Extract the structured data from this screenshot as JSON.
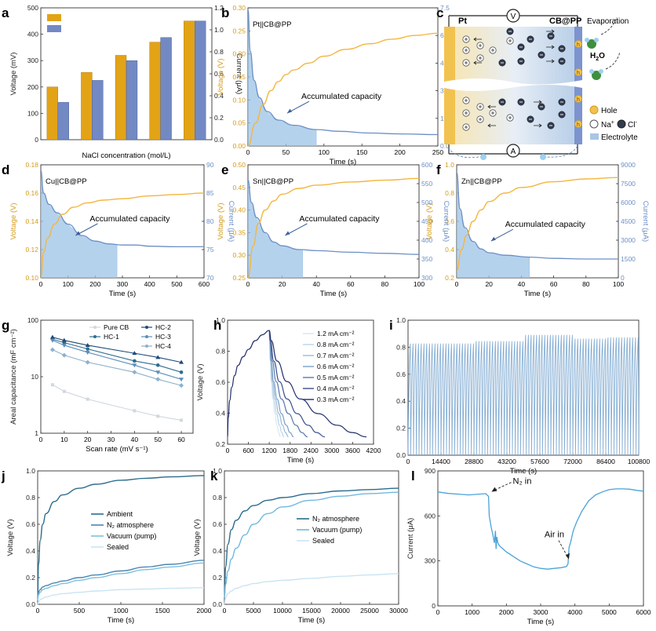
{
  "colors": {
    "voltage": "#f4b63f",
    "current": "#6c8fc6",
    "bar_voltage": "#e3a317",
    "bar_current": "#7289c3",
    "fill": "#9cc3e6",
    "dark_navy": "#1f2f5f",
    "pale": "#c9e2f3"
  },
  "panels": {
    "a": "a",
    "b": "b",
    "c": "c",
    "d": "d",
    "e": "e",
    "f": "f",
    "g": "g",
    "h": "h",
    "i": "i",
    "j": "j",
    "k": "k",
    "l": "l"
  },
  "schematic": {
    "pt_label": "Pt",
    "cb_label": "CB@PP",
    "voltmeter": "V",
    "ammeter": "A",
    "evaporation": "Evaporation",
    "water": "H",
    "water_sub": "2",
    "water_end": "O",
    "hole": "Hole",
    "na": "Na",
    "cl": "Cl",
    "electrolyte": "Electrolyte",
    "h_symbol": "h"
  },
  "chart_data": [
    {
      "id": "a",
      "type": "bar",
      "categories": [
        "0",
        "0.2",
        "0.5",
        "1",
        "2"
      ],
      "xlabel": "NaCl concentration (mol/L)",
      "ylabel": "Voltage (mV)",
      "ylabel2": "Current (μA)",
      "ylim": [
        0,
        500
      ],
      "ylim2": [
        0,
        1.2
      ],
      "yticks": [
        "0",
        "100",
        "200",
        "300",
        "400",
        "500"
      ],
      "yticks2": [
        "0.0",
        "0.2",
        "0.4",
        "0.6",
        "0.8",
        "1.0",
        "1.2"
      ],
      "series": [
        {
          "name": "Voltage",
          "axis": "left",
          "values": [
            200,
            255,
            320,
            370,
            450
          ]
        },
        {
          "name": "Current",
          "axis": "right",
          "values": [
            0.34,
            0.54,
            0.72,
            0.93,
            1.08
          ]
        }
      ]
    },
    {
      "id": "b",
      "type": "line",
      "label": "Pt||CB@PP",
      "annotation": "Accumulated capacity",
      "xlabel": "Time (s)",
      "ylabel": "Voltage (V)",
      "ylabel2": "Current (μA)",
      "xlim": [
        0,
        250
      ],
      "ylim": [
        0,
        0.3
      ],
      "ylim2": [
        0,
        8
      ],
      "xticks": [
        "0",
        "50",
        "100",
        "150",
        "200",
        "250"
      ],
      "yticks": [
        "0.00",
        "0.05",
        "0.10",
        "0.15",
        "0.20",
        "0.25",
        "0.30"
      ],
      "yticks2": [
        "0.0",
        "1.5",
        "3.0",
        "4.5",
        "6.0",
        "7.5"
      ],
      "fill_until": 90,
      "voltage": {
        "x": [
          0,
          10,
          20,
          30,
          40,
          50,
          60,
          80,
          100,
          130,
          160,
          190,
          220,
          250
        ],
        "y": [
          0,
          0.05,
          0.09,
          0.12,
          0.14,
          0.155,
          0.165,
          0.18,
          0.195,
          0.21,
          0.222,
          0.232,
          0.24,
          0.245
        ]
      },
      "current": {
        "x": [
          0,
          3,
          8,
          15,
          25,
          40,
          60,
          90,
          120,
          160,
          200,
          250
        ],
        "y": [
          7.9,
          5.5,
          3.8,
          2.8,
          2.0,
          1.5,
          1.2,
          0.95,
          0.85,
          0.75,
          0.7,
          0.66
        ]
      }
    },
    {
      "id": "d",
      "type": "line",
      "label": "Cu||CB@PP",
      "annotation": "Accumulated capacity",
      "xlabel": "Time (s)",
      "ylabel": "Voltage (V)",
      "ylabel2": "Current (μA)",
      "xlim": [
        0,
        600
      ],
      "ylim": [
        0.1,
        0.18
      ],
      "ylim2": [
        70,
        90
      ],
      "xticks": [
        "0",
        "100",
        "200",
        "300",
        "400",
        "500",
        "600"
      ],
      "yticks": [
        "0.10",
        "0.12",
        "0.14",
        "0.16",
        "0.18"
      ],
      "yticks2": [
        "70",
        "75",
        "80",
        "85",
        "90"
      ],
      "fill_until": 280,
      "voltage": {
        "x": [
          0,
          10,
          25,
          50,
          80,
          120,
          170,
          230,
          300,
          400,
          500,
          600
        ],
        "y": [
          0.1,
          0.118,
          0.128,
          0.138,
          0.145,
          0.15,
          0.153,
          0.155,
          0.156,
          0.158,
          0.159,
          0.16
        ]
      },
      "current": {
        "x": [
          0,
          10,
          30,
          60,
          100,
          150,
          200,
          250,
          300,
          350,
          400,
          500,
          600
        ],
        "y": [
          89,
          85,
          83,
          81.5,
          79.5,
          77.5,
          76.5,
          76,
          75.8,
          75.8,
          75.6,
          75.5,
          75.5
        ]
      }
    },
    {
      "id": "e",
      "type": "line",
      "label": "Sn||CB@PP",
      "annotation": "Accumulated capacity",
      "xlabel": "Time (s)",
      "ylabel": "Voltage (V)",
      "ylabel2": "Current (μA)",
      "xlim": [
        0,
        100
      ],
      "ylim": [
        0.25,
        0.5
      ],
      "ylim2": [
        300,
        600
      ],
      "xticks": [
        "0",
        "20",
        "40",
        "60",
        "80",
        "100"
      ],
      "yticks": [
        "0.25",
        "0.30",
        "0.35",
        "0.40",
        "0.45",
        "0.50"
      ],
      "yticks2": [
        "300",
        "350",
        "400",
        "450",
        "500",
        "550",
        "600"
      ],
      "fill_until": 32,
      "voltage": {
        "x": [
          0,
          3,
          6,
          10,
          15,
          20,
          30,
          40,
          60,
          80,
          100
        ],
        "y": [
          0.25,
          0.32,
          0.37,
          0.4,
          0.42,
          0.435,
          0.448,
          0.455,
          0.462,
          0.466,
          0.47
        ]
      },
      "current": {
        "x": [
          0,
          2,
          5,
          10,
          15,
          20,
          30,
          40,
          60,
          80,
          100
        ],
        "y": [
          560,
          500,
          460,
          420,
          395,
          385,
          375,
          372,
          368,
          365,
          362
        ]
      }
    },
    {
      "id": "f",
      "type": "line",
      "label": "Zn||CB@PP",
      "annotation": "Accumulated capacity",
      "xlabel": "Time (s)",
      "ylabel": "Voltage (V)",
      "ylabel2": "Current (μA)",
      "xlim": [
        0,
        100
      ],
      "ylim": [
        0.2,
        1.0
      ],
      "ylim2": [
        0,
        9000
      ],
      "xticks": [
        "0",
        "20",
        "40",
        "60",
        "80",
        "100"
      ],
      "yticks": [
        "0.2",
        "0.4",
        "0.6",
        "0.8",
        "1.0"
      ],
      "yticks2": [
        "0",
        "1500",
        "3000",
        "4500",
        "6000",
        "7500",
        "9000"
      ],
      "fill_until": 45,
      "voltage": {
        "x": [
          0,
          3,
          6,
          10,
          15,
          20,
          30,
          40,
          60,
          80,
          100
        ],
        "y": [
          0.25,
          0.4,
          0.5,
          0.6,
          0.68,
          0.74,
          0.8,
          0.84,
          0.88,
          0.9,
          0.91
        ]
      },
      "current": {
        "x": [
          0,
          2,
          5,
          10,
          15,
          20,
          30,
          45,
          60,
          80,
          100
        ],
        "y": [
          8400,
          5500,
          4000,
          2900,
          2300,
          2000,
          1800,
          1650,
          1550,
          1500,
          1500
        ]
      }
    },
    {
      "id": "g",
      "type": "line",
      "scale": "log",
      "xlabel": "Scan rate (mV s⁻¹)",
      "ylabel": "Areal capacitance (mF cm⁻²)",
      "xlim": [
        0,
        65
      ],
      "ylim": [
        1,
        100
      ],
      "xticks": [
        "0",
        "10",
        "20",
        "30",
        "40",
        "50",
        "60"
      ],
      "yticks": [
        "1",
        "10",
        "100"
      ],
      "x": [
        5,
        10,
        20,
        40,
        50,
        60
      ],
      "series": [
        {
          "name": "Pure CB",
          "color": "#d0d8df",
          "marker": "square",
          "values": [
            7.2,
            5.5,
            4.0,
            2.5,
            2.0,
            1.7
          ]
        },
        {
          "name": "HC-1",
          "color": "#2e6d8e",
          "marker": "circle",
          "values": [
            46,
            40,
            31,
            19,
            16,
            12
          ]
        },
        {
          "name": "HC-2",
          "color": "#1f4a7a",
          "marker": "triangle",
          "values": [
            50,
            44,
            36,
            26,
            22,
            18
          ]
        },
        {
          "name": "HC-3",
          "color": "#5b8fb8",
          "marker": "triangle-down",
          "values": [
            44,
            36,
            27,
            16,
            12,
            9
          ]
        },
        {
          "name": "HC-4",
          "color": "#8db1cc",
          "marker": "diamond",
          "values": [
            30,
            24,
            18,
            12,
            9,
            7
          ]
        }
      ]
    },
    {
      "id": "h",
      "type": "line",
      "xlabel": "Time (s)",
      "ylabel": "Voltage (V)",
      "xlim": [
        0,
        4200
      ],
      "ylim": [
        0.15,
        1.0
      ],
      "xticks": [
        "0",
        "600",
        "1200",
        "1800",
        "2400",
        "3000",
        "3600",
        "4200"
      ],
      "yticks": [
        "0.2",
        "0.4",
        "0.6",
        "0.8",
        "1.0"
      ],
      "charge": {
        "x": [
          0,
          20,
          60,
          120,
          200,
          300,
          450,
          600,
          800,
          1000,
          1200
        ],
        "y": [
          0.2,
          0.33,
          0.45,
          0.54,
          0.62,
          0.69,
          0.75,
          0.8,
          0.86,
          0.9,
          0.93
        ]
      },
      "series": [
        {
          "name": "1.2 mA cm⁻²",
          "color": "#d9e7f2",
          "end": 1520
        },
        {
          "name": "0.8 mA cm⁻²",
          "color": "#b8d2e6",
          "end": 1620
        },
        {
          "name": "0.7 mA cm⁻²",
          "color": "#97bbd8",
          "end": 1750
        },
        {
          "name": "0.6 mA cm⁻²",
          "color": "#7b9fc6",
          "end": 1900
        },
        {
          "name": "0.5 mA cm⁻²",
          "color": "#5a79ad",
          "end": 2300
        },
        {
          "name": "0.4 mA cm⁻²",
          "color": "#3c4f8c",
          "end": 2800
        },
        {
          "name": "0.3 mA cm⁻²",
          "color": "#222e6a",
          "end": 4000
        }
      ]
    },
    {
      "id": "i",
      "type": "line",
      "xlabel": "Time (s)",
      "ylabel": "",
      "xlim": [
        0,
        100800
      ],
      "ylim": [
        0.0,
        1.1
      ],
      "xticks": [
        "0",
        "14400",
        "28800",
        "43200",
        "57600",
        "72000",
        "86400",
        "100800"
      ],
      "yticks": [
        "0.0",
        "0.2",
        "0.4",
        "0.6",
        "0.8",
        "1.0"
      ],
      "cycles": 84,
      "low": 0.0,
      "peaks": [
        {
          "from": 0,
          "to": 28800,
          "top": 0.91
        },
        {
          "from": 28800,
          "to": 50400,
          "top": 0.93
        },
        {
          "from": 50400,
          "to": 72000,
          "top": 0.98
        },
        {
          "from": 72000,
          "to": 86400,
          "top": 0.95
        },
        {
          "from": 86400,
          "to": 100800,
          "top": 0.96
        }
      ]
    },
    {
      "id": "j",
      "type": "line",
      "xlabel": "Time (s)",
      "ylabel": "Voltage (V)",
      "xlim": [
        0,
        2000
      ],
      "ylim": [
        0.0,
        1.0
      ],
      "xticks": [
        "0",
        "500",
        "1000",
        "1500",
        "2000"
      ],
      "yticks": [
        "0.0",
        "0.2",
        "0.4",
        "0.6",
        "0.8",
        "1.0"
      ],
      "x": [
        0,
        10,
        30,
        60,
        100,
        200,
        300,
        500,
        700,
        1000,
        1300,
        1600,
        2000
      ],
      "series": [
        {
          "name": "Ambient",
          "color": "#2c6d8c",
          "values": [
            0.05,
            0.3,
            0.48,
            0.6,
            0.68,
            0.77,
            0.82,
            0.87,
            0.9,
            0.93,
            0.945,
            0.955,
            0.965
          ]
        },
        {
          "name": "N₂ atmosphere",
          "color": "#4b86b0",
          "values": [
            0.05,
            0.09,
            0.11,
            0.13,
            0.14,
            0.16,
            0.175,
            0.2,
            0.22,
            0.25,
            0.28,
            0.3,
            0.33
          ]
        },
        {
          "name": "Vacuum (pump)",
          "color": "#7ec0e2",
          "values": [
            0.03,
            0.07,
            0.09,
            0.11,
            0.12,
            0.14,
            0.155,
            0.18,
            0.2,
            0.23,
            0.26,
            0.28,
            0.31
          ]
        },
        {
          "name": "Sealed",
          "color": "#c9e4f3",
          "values": [
            0.0,
            0.02,
            0.035,
            0.045,
            0.055,
            0.07,
            0.08,
            0.09,
            0.1,
            0.11,
            0.115,
            0.12,
            0.125
          ]
        }
      ]
    },
    {
      "id": "k",
      "type": "line",
      "xlabel": "Time (s)",
      "ylabel": "Voltage (V)",
      "xlim": [
        0,
        30000
      ],
      "ylim": [
        0.0,
        1.0
      ],
      "xticks": [
        "0",
        "5000",
        "10000",
        "15000",
        "20000",
        "25000",
        "30000"
      ],
      "yticks": [
        "0.0",
        "0.2",
        "0.4",
        "0.6",
        "0.8",
        "1.0"
      ],
      "x": [
        0,
        200,
        600,
        1200,
        2000,
        3500,
        5000,
        7500,
        10000,
        15000,
        20000,
        25000,
        30000
      ],
      "series": [
        {
          "name": "N₂ atmosphere",
          "color": "#2c6d8c",
          "values": [
            0.05,
            0.28,
            0.45,
            0.56,
            0.63,
            0.7,
            0.74,
            0.78,
            0.8,
            0.83,
            0.85,
            0.86,
            0.87
          ]
        },
        {
          "name": "Vacuum (pump)",
          "color": "#6fb8e0",
          "values": [
            0.05,
            0.15,
            0.25,
            0.34,
            0.42,
            0.52,
            0.6,
            0.68,
            0.73,
            0.78,
            0.81,
            0.83,
            0.84
          ]
        },
        {
          "name": "Sealed",
          "color": "#c9e4f3",
          "values": [
            0.0,
            0.05,
            0.08,
            0.1,
            0.12,
            0.14,
            0.155,
            0.17,
            0.18,
            0.195,
            0.21,
            0.22,
            0.23
          ]
        }
      ]
    },
    {
      "id": "l",
      "type": "line",
      "xlabel": "Time (s)",
      "ylabel": "Current (μA)",
      "xlim": [
        0,
        6000
      ],
      "ylim": [
        0,
        900
      ],
      "xticks": [
        "0",
        "1000",
        "2000",
        "3000",
        "4000",
        "5000",
        "6000"
      ],
      "yticks": [
        "0",
        "300",
        "600",
        "900"
      ],
      "annotations": [
        "N₂ in",
        "Air in"
      ],
      "x": [
        0,
        300,
        600,
        900,
        1200,
        1400,
        1480,
        1500,
        1560,
        1600,
        1650,
        1680,
        1700,
        1720,
        1750,
        1800,
        1900,
        2000,
        2200,
        2400,
        2600,
        2800,
        3000,
        3200,
        3400,
        3600,
        3750,
        3800,
        3830,
        3870,
        3900,
        3950,
        4050,
        4200,
        4400,
        4600,
        4800,
        5000,
        5200,
        5400,
        5600,
        5800,
        6000
      ],
      "values": [
        760,
        750,
        745,
        740,
        745,
        748,
        730,
        600,
        520,
        480,
        420,
        500,
        380,
        460,
        420,
        400,
        380,
        360,
        330,
        300,
        280,
        260,
        250,
        245,
        250,
        255,
        262,
        280,
        390,
        420,
        450,
        500,
        560,
        630,
        700,
        740,
        760,
        775,
        780,
        780,
        778,
        770,
        765
      ]
    }
  ]
}
